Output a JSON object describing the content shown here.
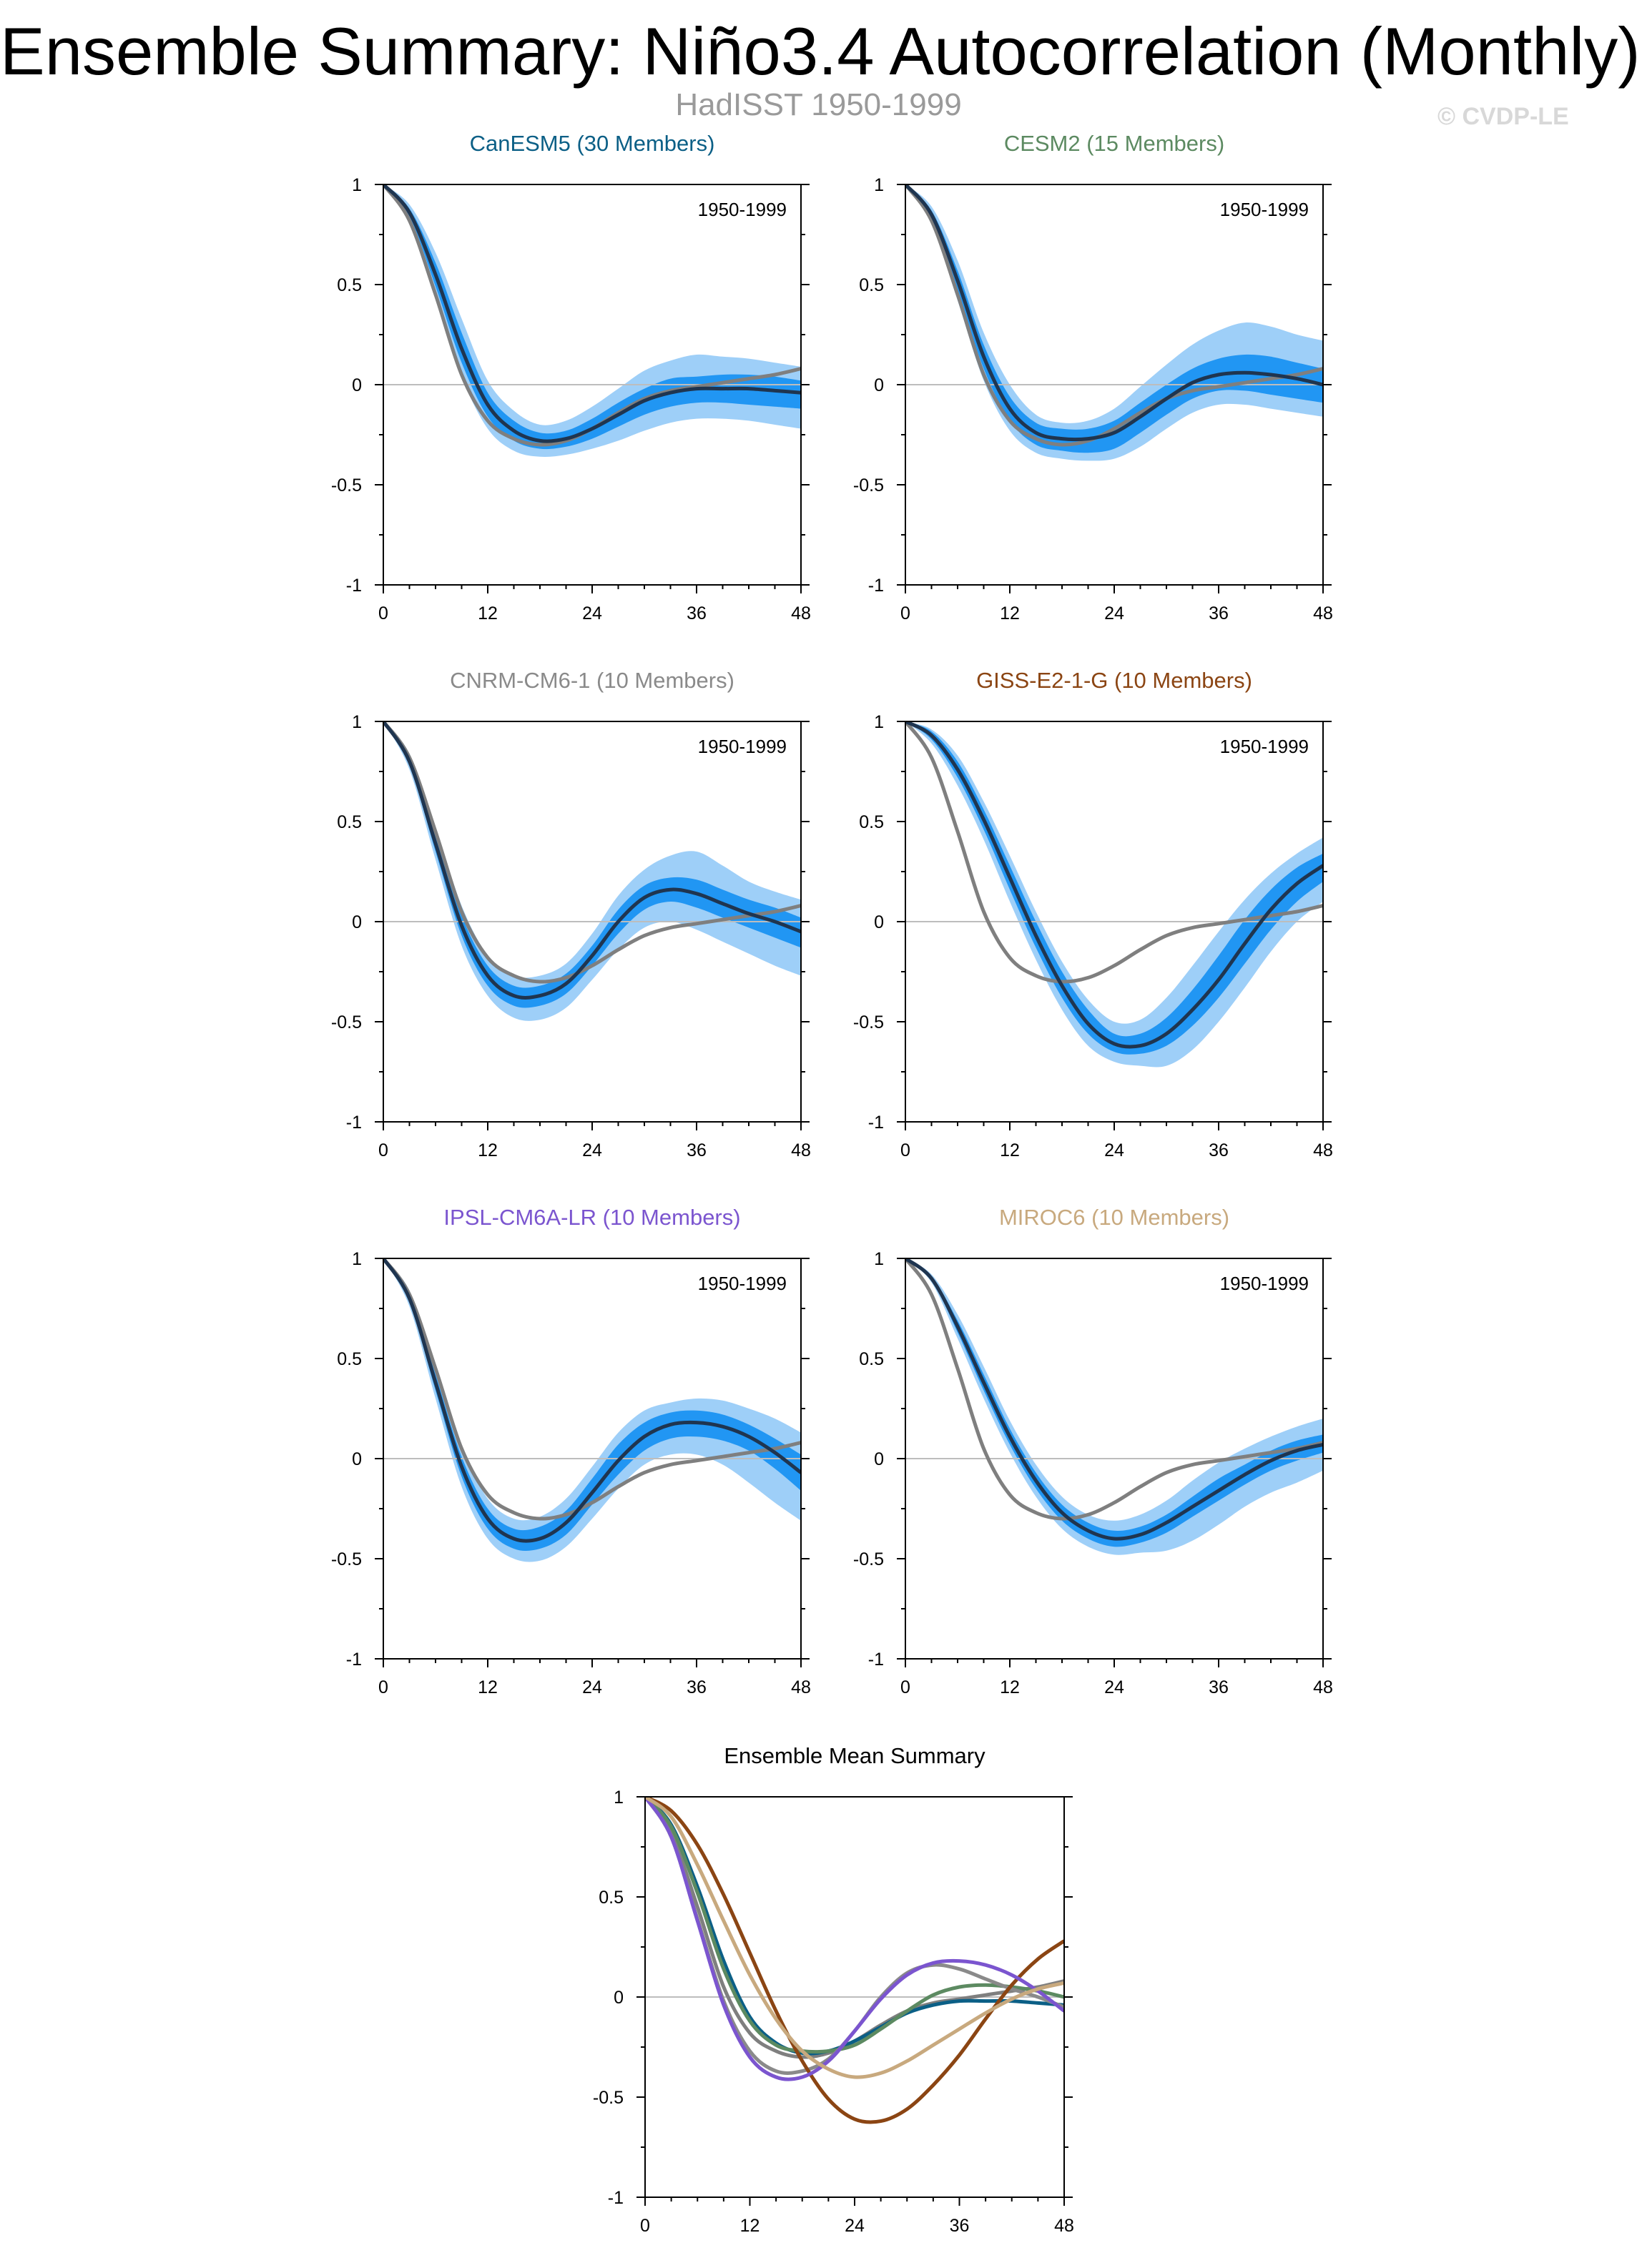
{
  "title": "Ensemble Summary: Niño3.4 Autocorrelation (Monthly)",
  "subtitle": "HadISST 1950-1999",
  "credit": "© CVDP-LE",
  "colors": {
    "obs": "#7f7f7f",
    "ens_mean": "#1f3550",
    "spread_inner": "#2196f3",
    "spread_outer": "#9ecff8",
    "zero_line": "#bdbdbd",
    "axis": "#000000"
  },
  "chart_data": [
    {
      "type": "line",
      "title": "CanESM5 (30 Members)",
      "title_color": "#0b5f86",
      "period_label": "1950-1999",
      "x": [
        0,
        3,
        6,
        9,
        12,
        15,
        18,
        21,
        24,
        27,
        30,
        33,
        36,
        39,
        42,
        45,
        48
      ],
      "xticks": [
        0,
        12,
        24,
        36,
        48
      ],
      "yticks": [
        -1,
        -0.5,
        0,
        0.5,
        1
      ],
      "ytick_labels": [
        "-1",
        "-0.5",
        "0",
        "0.5",
        "1"
      ],
      "xlim": [
        0,
        48
      ],
      "ylim": [
        -1,
        1
      ],
      "observed": [
        1,
        0.82,
        0.45,
        0.05,
        -0.18,
        -0.27,
        -0.3,
        -0.28,
        -0.22,
        -0.14,
        -0.07,
        -0.03,
        -0.01,
        0.01,
        0.03,
        0.05,
        0.08
      ],
      "ensemble_mean": [
        1,
        0.86,
        0.55,
        0.18,
        -0.1,
        -0.23,
        -0.28,
        -0.27,
        -0.22,
        -0.15,
        -0.08,
        -0.04,
        -0.02,
        -0.02,
        -0.02,
        -0.03,
        -0.04
      ],
      "spread_inner": {
        "upper": [
          1,
          0.88,
          0.61,
          0.26,
          -0.04,
          -0.18,
          -0.24,
          -0.23,
          -0.17,
          -0.09,
          -0.02,
          0.03,
          0.04,
          0.05,
          0.05,
          0.04,
          0.02
        ],
        "lower": [
          1,
          0.84,
          0.49,
          0.11,
          -0.16,
          -0.28,
          -0.32,
          -0.31,
          -0.27,
          -0.21,
          -0.15,
          -0.11,
          -0.09,
          -0.09,
          -0.1,
          -0.11,
          -0.12
        ]
      },
      "spread_outer": {
        "upper": [
          1,
          0.9,
          0.66,
          0.33,
          0.02,
          -0.13,
          -0.2,
          -0.18,
          -0.11,
          -0.02,
          0.07,
          0.12,
          0.15,
          0.14,
          0.13,
          0.11,
          0.09
        ],
        "lower": [
          1,
          0.82,
          0.44,
          0.04,
          -0.22,
          -0.33,
          -0.36,
          -0.35,
          -0.32,
          -0.28,
          -0.23,
          -0.19,
          -0.17,
          -0.17,
          -0.18,
          -0.2,
          -0.22
        ]
      }
    },
    {
      "type": "line",
      "title": "CESM2 (15 Members)",
      "title_color": "#5c8a61",
      "period_label": "1950-1999",
      "x": [
        0,
        3,
        6,
        9,
        12,
        15,
        18,
        21,
        24,
        27,
        30,
        33,
        36,
        39,
        42,
        45,
        48
      ],
      "xticks": [
        0,
        12,
        24,
        36,
        48
      ],
      "yticks": [
        -1,
        -0.5,
        0,
        0.5,
        1
      ],
      "ytick_labels": [
        "-1",
        "-0.5",
        "0",
        "0.5",
        "1"
      ],
      "xlim": [
        0,
        48
      ],
      "ylim": [
        -1,
        1
      ],
      "observed": [
        1,
        0.82,
        0.45,
        0.05,
        -0.18,
        -0.27,
        -0.3,
        -0.28,
        -0.22,
        -0.14,
        -0.07,
        -0.03,
        -0.01,
        0.01,
        0.03,
        0.05,
        0.08
      ],
      "ensemble_mean": [
        1,
        0.85,
        0.52,
        0.14,
        -0.12,
        -0.24,
        -0.27,
        -0.27,
        -0.24,
        -0.16,
        -0.07,
        0.01,
        0.05,
        0.06,
        0.05,
        0.03,
        0.0
      ],
      "spread_inner": {
        "upper": [
          1,
          0.87,
          0.57,
          0.2,
          -0.06,
          -0.19,
          -0.22,
          -0.22,
          -0.18,
          -0.09,
          0.0,
          0.08,
          0.13,
          0.15,
          0.14,
          0.11,
          0.08
        ],
        "lower": [
          1,
          0.83,
          0.47,
          0.08,
          -0.18,
          -0.3,
          -0.33,
          -0.34,
          -0.32,
          -0.24,
          -0.15,
          -0.07,
          -0.03,
          -0.03,
          -0.05,
          -0.07,
          -0.09
        ]
      },
      "spread_outer": {
        "upper": [
          1,
          0.89,
          0.62,
          0.26,
          0.0,
          -0.15,
          -0.19,
          -0.18,
          -0.12,
          -0.01,
          0.1,
          0.2,
          0.27,
          0.31,
          0.29,
          0.25,
          0.22
        ],
        "lower": [
          1,
          0.81,
          0.42,
          0.02,
          -0.23,
          -0.34,
          -0.37,
          -0.38,
          -0.37,
          -0.31,
          -0.22,
          -0.14,
          -0.1,
          -0.1,
          -0.12,
          -0.14,
          -0.16
        ]
      }
    },
    {
      "type": "line",
      "title": "CNRM-CM6-1 (10 Members)",
      "title_color": "#8a8a8a",
      "period_label": "1950-1999",
      "x": [
        0,
        3,
        6,
        9,
        12,
        15,
        18,
        21,
        24,
        27,
        30,
        33,
        36,
        39,
        42,
        45,
        48
      ],
      "xticks": [
        0,
        12,
        24,
        36,
        48
      ],
      "yticks": [
        -1,
        -0.5,
        0,
        0.5,
        1
      ],
      "ytick_labels": [
        "-1",
        "-0.5",
        "0",
        "0.5",
        "1"
      ],
      "xlim": [
        0,
        48
      ],
      "ylim": [
        -1,
        1
      ],
      "observed": [
        1,
        0.82,
        0.45,
        0.05,
        -0.18,
        -0.27,
        -0.3,
        -0.28,
        -0.22,
        -0.14,
        -0.07,
        -0.03,
        -0.01,
        0.01,
        0.03,
        0.05,
        0.08
      ],
      "ensemble_mean": [
        1,
        0.8,
        0.39,
        -0.02,
        -0.27,
        -0.37,
        -0.37,
        -0.31,
        -0.17,
        0.0,
        0.12,
        0.16,
        0.14,
        0.09,
        0.04,
        0.0,
        -0.05
      ],
      "spread_inner": {
        "upper": [
          1,
          0.82,
          0.43,
          0.03,
          -0.22,
          -0.32,
          -0.32,
          -0.26,
          -0.12,
          0.06,
          0.18,
          0.22,
          0.21,
          0.16,
          0.11,
          0.07,
          0.02
        ],
        "lower": [
          1,
          0.78,
          0.35,
          -0.07,
          -0.32,
          -0.42,
          -0.42,
          -0.36,
          -0.22,
          -0.06,
          0.06,
          0.1,
          0.07,
          0.02,
          -0.03,
          -0.08,
          -0.13
        ]
      },
      "spread_outer": {
        "upper": [
          1,
          0.84,
          0.47,
          0.08,
          -0.17,
          -0.27,
          -0.27,
          -0.21,
          -0.06,
          0.13,
          0.26,
          0.33,
          0.35,
          0.28,
          0.2,
          0.15,
          0.11
        ],
        "lower": [
          1,
          0.76,
          0.31,
          -0.12,
          -0.37,
          -0.48,
          -0.49,
          -0.43,
          -0.29,
          -0.14,
          -0.03,
          0.0,
          -0.04,
          -0.1,
          -0.16,
          -0.22,
          -0.27
        ]
      }
    },
    {
      "type": "line",
      "title": "GISS-E2-1-G (10 Members)",
      "title_color": "#8b4513",
      "period_label": "1950-1999",
      "x": [
        0,
        3,
        6,
        9,
        12,
        15,
        18,
        21,
        24,
        27,
        30,
        33,
        36,
        39,
        42,
        45,
        48
      ],
      "xticks": [
        0,
        12,
        24,
        36,
        48
      ],
      "yticks": [
        -1,
        -0.5,
        0,
        0.5,
        1
      ],
      "ytick_labels": [
        "-1",
        "-0.5",
        "0",
        "0.5",
        "1"
      ],
      "xlim": [
        0,
        48
      ],
      "ylim": [
        -1,
        1
      ],
      "observed": [
        1,
        0.82,
        0.45,
        0.05,
        -0.18,
        -0.27,
        -0.3,
        -0.28,
        -0.22,
        -0.14,
        -0.07,
        -0.03,
        -0.01,
        0.01,
        0.03,
        0.05,
        0.08
      ],
      "ensemble_mean": [
        1,
        0.93,
        0.76,
        0.51,
        0.22,
        -0.07,
        -0.32,
        -0.51,
        -0.61,
        -0.62,
        -0.56,
        -0.44,
        -0.29,
        -0.11,
        0.06,
        0.19,
        0.28
      ],
      "spread_inner": {
        "upper": [
          1,
          0.95,
          0.8,
          0.56,
          0.28,
          0.0,
          -0.25,
          -0.44,
          -0.56,
          -0.56,
          -0.48,
          -0.34,
          -0.17,
          0.01,
          0.16,
          0.27,
          0.34
        ],
        "lower": [
          1,
          0.91,
          0.72,
          0.46,
          0.16,
          -0.13,
          -0.38,
          -0.56,
          -0.65,
          -0.66,
          -0.62,
          -0.52,
          -0.38,
          -0.21,
          -0.04,
          0.1,
          0.2
        ]
      },
      "spread_outer": {
        "upper": [
          1,
          0.96,
          0.83,
          0.6,
          0.33,
          0.05,
          -0.2,
          -0.39,
          -0.5,
          -0.49,
          -0.38,
          -0.22,
          -0.05,
          0.11,
          0.24,
          0.34,
          0.42
        ],
        "lower": [
          1,
          0.89,
          0.68,
          0.41,
          0.1,
          -0.19,
          -0.44,
          -0.62,
          -0.7,
          -0.72,
          -0.72,
          -0.64,
          -0.5,
          -0.33,
          -0.15,
          0.0,
          0.1
        ]
      }
    },
    {
      "type": "line",
      "title": "IPSL-CM6A-LR (10 Members)",
      "title_color": "#7b55cf",
      "period_label": "1950-1999",
      "x": [
        0,
        3,
        6,
        9,
        12,
        15,
        18,
        21,
        24,
        27,
        30,
        33,
        36,
        39,
        42,
        45,
        48
      ],
      "xticks": [
        0,
        12,
        24,
        36,
        48
      ],
      "yticks": [
        -1,
        -0.5,
        0,
        0.5,
        1
      ],
      "ytick_labels": [
        "-1",
        "-0.5",
        "0",
        "0.5",
        "1"
      ],
      "xlim": [
        0,
        48
      ],
      "ylim": [
        -1,
        1
      ],
      "observed": [
        1,
        0.82,
        0.45,
        0.05,
        -0.18,
        -0.27,
        -0.3,
        -0.28,
        -0.22,
        -0.14,
        -0.07,
        -0.03,
        -0.01,
        0.01,
        0.03,
        0.05,
        0.08
      ],
      "ensemble_mean": [
        1,
        0.8,
        0.38,
        -0.04,
        -0.3,
        -0.4,
        -0.4,
        -0.32,
        -0.17,
        -0.01,
        0.11,
        0.17,
        0.18,
        0.16,
        0.11,
        0.03,
        -0.07
      ],
      "spread_inner": {
        "upper": [
          1,
          0.82,
          0.42,
          0.01,
          -0.25,
          -0.35,
          -0.34,
          -0.26,
          -0.1,
          0.07,
          0.18,
          0.23,
          0.24,
          0.22,
          0.17,
          0.1,
          0.02
        ],
        "lower": [
          1,
          0.78,
          0.34,
          -0.09,
          -0.35,
          -0.45,
          -0.45,
          -0.38,
          -0.23,
          -0.08,
          0.04,
          0.1,
          0.11,
          0.09,
          0.04,
          -0.05,
          -0.16
        ]
      },
      "spread_outer": {
        "upper": [
          1,
          0.84,
          0.46,
          0.06,
          -0.2,
          -0.3,
          -0.29,
          -0.2,
          -0.04,
          0.13,
          0.24,
          0.28,
          0.3,
          0.29,
          0.25,
          0.2,
          0.13
        ],
        "lower": [
          1,
          0.76,
          0.3,
          -0.14,
          -0.4,
          -0.5,
          -0.51,
          -0.44,
          -0.3,
          -0.15,
          -0.03,
          0.02,
          0.02,
          -0.03,
          -0.12,
          -0.22,
          -0.31
        ]
      }
    },
    {
      "type": "line",
      "title": "MIROC6 (10 Members)",
      "title_color": "#c8a97e",
      "period_label": "1950-1999",
      "x": [
        0,
        3,
        6,
        9,
        12,
        15,
        18,
        21,
        24,
        27,
        30,
        33,
        36,
        39,
        42,
        45,
        48
      ],
      "xticks": [
        0,
        12,
        24,
        36,
        48
      ],
      "yticks": [
        -1,
        -0.5,
        0,
        0.5,
        1
      ],
      "ytick_labels": [
        "-1",
        "-0.5",
        "0",
        "0.5",
        "1"
      ],
      "xlim": [
        0,
        48
      ],
      "ylim": [
        -1,
        1
      ],
      "observed": [
        1,
        0.82,
        0.45,
        0.05,
        -0.18,
        -0.27,
        -0.3,
        -0.28,
        -0.22,
        -0.14,
        -0.07,
        -0.03,
        -0.01,
        0.01,
        0.03,
        0.05,
        0.08
      ],
      "ensemble_mean": [
        1,
        0.9,
        0.66,
        0.38,
        0.11,
        -0.11,
        -0.27,
        -0.36,
        -0.4,
        -0.38,
        -0.32,
        -0.24,
        -0.16,
        -0.08,
        -0.01,
        0.04,
        0.07
      ],
      "spread_inner": {
        "upper": [
          1,
          0.91,
          0.69,
          0.42,
          0.15,
          -0.07,
          -0.23,
          -0.32,
          -0.36,
          -0.34,
          -0.28,
          -0.19,
          -0.1,
          -0.03,
          0.04,
          0.09,
          0.12
        ],
        "lower": [
          1,
          0.89,
          0.63,
          0.34,
          0.07,
          -0.15,
          -0.31,
          -0.4,
          -0.44,
          -0.42,
          -0.37,
          -0.29,
          -0.21,
          -0.13,
          -0.06,
          -0.01,
          0.03
        ]
      },
      "spread_outer": {
        "upper": [
          1,
          0.92,
          0.72,
          0.46,
          0.19,
          -0.03,
          -0.19,
          -0.28,
          -0.31,
          -0.28,
          -0.21,
          -0.11,
          -0.02,
          0.05,
          0.11,
          0.16,
          0.2
        ],
        "lower": [
          1,
          0.88,
          0.6,
          0.3,
          0.03,
          -0.19,
          -0.35,
          -0.44,
          -0.48,
          -0.47,
          -0.46,
          -0.41,
          -0.33,
          -0.24,
          -0.17,
          -0.12,
          -0.06
        ]
      }
    },
    {
      "type": "line",
      "title": "Ensemble Mean Summary",
      "title_color": "#000000",
      "x": [
        0,
        3,
        6,
        9,
        12,
        15,
        18,
        21,
        24,
        27,
        30,
        33,
        36,
        39,
        42,
        45,
        48
      ],
      "xticks": [
        0,
        12,
        24,
        36,
        48
      ],
      "yticks": [
        -1,
        -0.5,
        0,
        0.5,
        1
      ],
      "ytick_labels": [
        "-1",
        "-0.5",
        "0",
        "0.5",
        "1"
      ],
      "xlim": [
        0,
        48
      ],
      "ylim": [
        -1,
        1
      ],
      "series": [
        {
          "name": "HadISST",
          "color": "#7f7f7f",
          "values": [
            1,
            0.82,
            0.45,
            0.05,
            -0.18,
            -0.27,
            -0.3,
            -0.28,
            -0.22,
            -0.14,
            -0.07,
            -0.03,
            -0.01,
            0.01,
            0.03,
            0.05,
            0.08
          ]
        },
        {
          "name": "CanESM5",
          "color": "#0b5f86",
          "values": [
            1,
            0.86,
            0.55,
            0.18,
            -0.1,
            -0.23,
            -0.28,
            -0.27,
            -0.22,
            -0.15,
            -0.08,
            -0.04,
            -0.02,
            -0.02,
            -0.02,
            -0.03,
            -0.04
          ]
        },
        {
          "name": "CESM2",
          "color": "#5c8a61",
          "values": [
            1,
            0.85,
            0.52,
            0.14,
            -0.12,
            -0.24,
            -0.27,
            -0.27,
            -0.24,
            -0.16,
            -0.07,
            0.01,
            0.05,
            0.06,
            0.05,
            0.03,
            0.0
          ]
        },
        {
          "name": "CNRM-CM6-1",
          "color": "#8a8a8a",
          "values": [
            1,
            0.8,
            0.39,
            -0.02,
            -0.27,
            -0.37,
            -0.37,
            -0.31,
            -0.17,
            0.0,
            0.12,
            0.16,
            0.14,
            0.09,
            0.04,
            0.0,
            -0.05
          ]
        },
        {
          "name": "GISS-E2-1-G",
          "color": "#8b4513",
          "values": [
            1,
            0.93,
            0.76,
            0.51,
            0.22,
            -0.07,
            -0.32,
            -0.51,
            -0.61,
            -0.62,
            -0.56,
            -0.44,
            -0.29,
            -0.11,
            0.06,
            0.19,
            0.28
          ]
        },
        {
          "name": "IPSL-CM6A-LR",
          "color": "#7b55cf",
          "values": [
            1,
            0.8,
            0.38,
            -0.04,
            -0.3,
            -0.4,
            -0.4,
            -0.32,
            -0.17,
            -0.01,
            0.11,
            0.17,
            0.18,
            0.16,
            0.11,
            0.03,
            -0.07
          ]
        },
        {
          "name": "MIROC6",
          "color": "#c8a97e",
          "values": [
            1,
            0.9,
            0.66,
            0.38,
            0.11,
            -0.11,
            -0.27,
            -0.36,
            -0.4,
            -0.38,
            -0.32,
            -0.24,
            -0.16,
            -0.08,
            -0.01,
            0.04,
            0.07
          ]
        }
      ]
    }
  ]
}
